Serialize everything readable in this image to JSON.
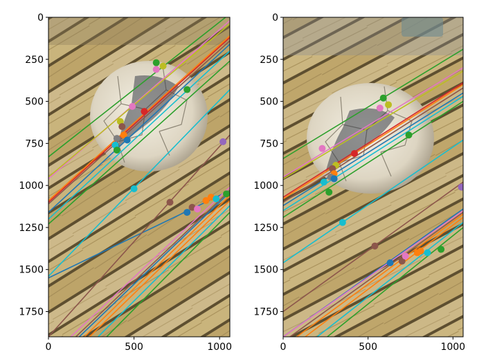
{
  "chart_data": [
    {
      "type": "scatter",
      "panel": "left",
      "title": "",
      "xlabel": "",
      "ylabel": "",
      "xlim": [
        0,
        1060
      ],
      "ylim": [
        1900,
        0
      ],
      "y_inverted": true,
      "xticks": [
        0,
        500,
        1000
      ],
      "yticks": [
        0,
        250,
        500,
        750,
        1000,
        1250,
        1500,
        1750
      ],
      "background": "photo of a worn white soccer ball on weathered yellow wooden deck boards",
      "epipolar_lines": [
        {
          "color": "#2ca02c",
          "x": [
            0,
            1060
          ],
          "y": [
            830,
            -20
          ]
        },
        {
          "color": "#e377c2",
          "x": [
            0,
            1060
          ],
          "y": [
            960,
            20
          ]
        },
        {
          "color": "#bcbd22",
          "x": [
            0,
            1060
          ],
          "y": [
            950,
            40
          ]
        },
        {
          "color": "#ff7f0e",
          "x": [
            0,
            1060
          ],
          "y": [
            1090,
            110
          ]
        },
        {
          "color": "#d62728",
          "x": [
            0,
            1060
          ],
          "y": [
            1100,
            120
          ]
        },
        {
          "color": "#8c564b",
          "x": [
            0,
            1060
          ],
          "y": [
            1110,
            140
          ]
        },
        {
          "color": "#1f77b4",
          "x": [
            0,
            1060
          ],
          "y": [
            1160,
            160
          ]
        },
        {
          "color": "#17becf",
          "x": [
            0,
            1060
          ],
          "y": [
            1200,
            200
          ]
        },
        {
          "color": "#2ca02c",
          "x": [
            0,
            1060
          ],
          "y": [
            1230,
            260
          ]
        },
        {
          "color": "#17becf",
          "x": [
            0,
            1060
          ],
          "y": [
            1540,
            430
          ]
        },
        {
          "color": "#1f77b4",
          "x": [
            0,
            1060
          ],
          "y": [
            1550,
            1030
          ]
        },
        {
          "color": "#8c564b",
          "x": [
            0,
            1060
          ],
          "y": [
            1900,
            700
          ]
        },
        {
          "color": "#e377c2",
          "x": [
            130,
            1060
          ],
          "y": [
            1900,
            1010
          ]
        },
        {
          "color": "#8c564b",
          "x": [
            160,
            1060
          ],
          "y": [
            1900,
            1030
          ]
        },
        {
          "color": "#1f77b4",
          "x": [
            180,
            1060
          ],
          "y": [
            1900,
            1040
          ]
        },
        {
          "color": "#ff7f0e",
          "x": [
            210,
            1060
          ],
          "y": [
            1900,
            1060
          ]
        },
        {
          "color": "#ff7f0e",
          "x": [
            240,
            1060
          ],
          "y": [
            1900,
            1090
          ]
        },
        {
          "color": "#17becf",
          "x": [
            290,
            1060
          ],
          "y": [
            1900,
            1120
          ]
        },
        {
          "color": "#2ca02c",
          "x": [
            340,
            1060
          ],
          "y": [
            1900,
            1160
          ]
        }
      ],
      "points": [
        {
          "x": 630,
          "y": 270,
          "color": "#2ca02c"
        },
        {
          "x": 670,
          "y": 290,
          "color": "#bcbd22"
        },
        {
          "x": 630,
          "y": 310,
          "color": "#e377c2"
        },
        {
          "x": 810,
          "y": 430,
          "color": "#2ca02c"
        },
        {
          "x": 490,
          "y": 530,
          "color": "#e377c2"
        },
        {
          "x": 560,
          "y": 560,
          "color": "#d62728"
        },
        {
          "x": 420,
          "y": 620,
          "color": "#bcbd22"
        },
        {
          "x": 430,
          "y": 650,
          "color": "#8c564b"
        },
        {
          "x": 440,
          "y": 700,
          "color": "#ff7f0e"
        },
        {
          "x": 400,
          "y": 720,
          "color": "#7f7f7f"
        },
        {
          "x": 460,
          "y": 730,
          "color": "#1f77b4"
        },
        {
          "x": 390,
          "y": 760,
          "color": "#17becf"
        },
        {
          "x": 400,
          "y": 790,
          "color": "#2ca02c"
        },
        {
          "x": 1020,
          "y": 740,
          "color": "#9467bd"
        },
        {
          "x": 500,
          "y": 1020,
          "color": "#17becf"
        },
        {
          "x": 710,
          "y": 1100,
          "color": "#8c564b"
        },
        {
          "x": 810,
          "y": 1160,
          "color": "#1f77b4"
        },
        {
          "x": 840,
          "y": 1130,
          "color": "#8c564b"
        },
        {
          "x": 870,
          "y": 1140,
          "color": "#e377c2"
        },
        {
          "x": 920,
          "y": 1090,
          "color": "#ff7f0e"
        },
        {
          "x": 950,
          "y": 1070,
          "color": "#ff7f0e"
        },
        {
          "x": 980,
          "y": 1080,
          "color": "#17becf"
        },
        {
          "x": 1040,
          "y": 1050,
          "color": "#2ca02c"
        }
      ]
    },
    {
      "type": "scatter",
      "panel": "right",
      "title": "",
      "xlabel": "",
      "ylabel": "",
      "xlim": [
        0,
        1060
      ],
      "ylim": [
        1900,
        0
      ],
      "y_inverted": true,
      "xticks": [
        0,
        500,
        1000
      ],
      "yticks": [
        0,
        250,
        500,
        750,
        1000,
        1250,
        1500,
        1750
      ],
      "background": "photo of a worn white soccer ball on weathered yellow wooden deck boards (second view)",
      "epipolar_lines": [
        {
          "color": "#2ca02c",
          "x": [
            0,
            1060
          ],
          "y": [
            840,
            190
          ]
        },
        {
          "color": "#e377c2",
          "x": [
            0,
            1060
          ],
          "y": [
            950,
            300
          ]
        },
        {
          "color": "#bcbd22",
          "x": [
            0,
            1060
          ],
          "y": [
            960,
            320
          ]
        },
        {
          "color": "#d62728",
          "x": [
            0,
            1060
          ],
          "y": [
            1070,
            390
          ]
        },
        {
          "color": "#ff7f0e",
          "x": [
            0,
            1060
          ],
          "y": [
            1080,
            400
          ]
        },
        {
          "color": "#8c564b",
          "x": [
            0,
            1060
          ],
          "y": [
            1100,
            420
          ]
        },
        {
          "color": "#1f77b4",
          "x": [
            0,
            1060
          ],
          "y": [
            1120,
            450
          ]
        },
        {
          "color": "#17becf",
          "x": [
            0,
            1060
          ],
          "y": [
            1150,
            470
          ]
        },
        {
          "color": "#2ca02c",
          "x": [
            0,
            1060
          ],
          "y": [
            1190,
            500
          ]
        },
        {
          "color": "#17becf",
          "x": [
            0,
            1060
          ],
          "y": [
            1460,
            730
          ]
        },
        {
          "color": "#8c564b",
          "x": [
            0,
            1060
          ],
          "y": [
            1750,
            980
          ]
        },
        {
          "color": "#1f77b4",
          "x": [
            0,
            1060
          ],
          "y": [
            1900,
            1140
          ]
        },
        {
          "color": "#e377c2",
          "x": [
            0,
            1060
          ],
          "y": [
            1900,
            1150
          ]
        },
        {
          "color": "#8c564b",
          "x": [
            40,
            1060
          ],
          "y": [
            1900,
            1160
          ]
        },
        {
          "color": "#ff7f0e",
          "x": [
            80,
            1060
          ],
          "y": [
            1900,
            1170
          ]
        },
        {
          "color": "#ff7f0e",
          "x": [
            130,
            1060
          ],
          "y": [
            1900,
            1190
          ]
        },
        {
          "color": "#17becf",
          "x": [
            200,
            1060
          ],
          "y": [
            1900,
            1220
          ]
        },
        {
          "color": "#2ca02c",
          "x": [
            260,
            1060
          ],
          "y": [
            1900,
            1250
          ]
        }
      ],
      "points": [
        {
          "x": 590,
          "y": 480,
          "color": "#2ca02c"
        },
        {
          "x": 620,
          "y": 520,
          "color": "#bcbd22"
        },
        {
          "x": 570,
          "y": 540,
          "color": "#e377c2"
        },
        {
          "x": 740,
          "y": 700,
          "color": "#2ca02c"
        },
        {
          "x": 230,
          "y": 780,
          "color": "#e377c2"
        },
        {
          "x": 420,
          "y": 810,
          "color": "#d62728"
        },
        {
          "x": 310,
          "y": 880,
          "color": "#bcbd22"
        },
        {
          "x": 290,
          "y": 900,
          "color": "#8c564b"
        },
        {
          "x": 300,
          "y": 930,
          "color": "#ff7f0e"
        },
        {
          "x": 280,
          "y": 950,
          "color": "#7f7f7f"
        },
        {
          "x": 300,
          "y": 960,
          "color": "#1f77b4"
        },
        {
          "x": 240,
          "y": 980,
          "color": "#17becf"
        },
        {
          "x": 270,
          "y": 1040,
          "color": "#2ca02c"
        },
        {
          "x": 1050,
          "y": 1010,
          "color": "#9467bd"
        },
        {
          "x": 350,
          "y": 1220,
          "color": "#17becf"
        },
        {
          "x": 540,
          "y": 1360,
          "color": "#8c564b"
        },
        {
          "x": 630,
          "y": 1460,
          "color": "#1f77b4"
        },
        {
          "x": 700,
          "y": 1450,
          "color": "#8c564b"
        },
        {
          "x": 720,
          "y": 1420,
          "color": "#e377c2"
        },
        {
          "x": 790,
          "y": 1400,
          "color": "#ff7f0e"
        },
        {
          "x": 810,
          "y": 1390,
          "color": "#ff7f0e"
        },
        {
          "x": 850,
          "y": 1400,
          "color": "#17becf"
        },
        {
          "x": 930,
          "y": 1380,
          "color": "#2ca02c"
        }
      ]
    }
  ]
}
